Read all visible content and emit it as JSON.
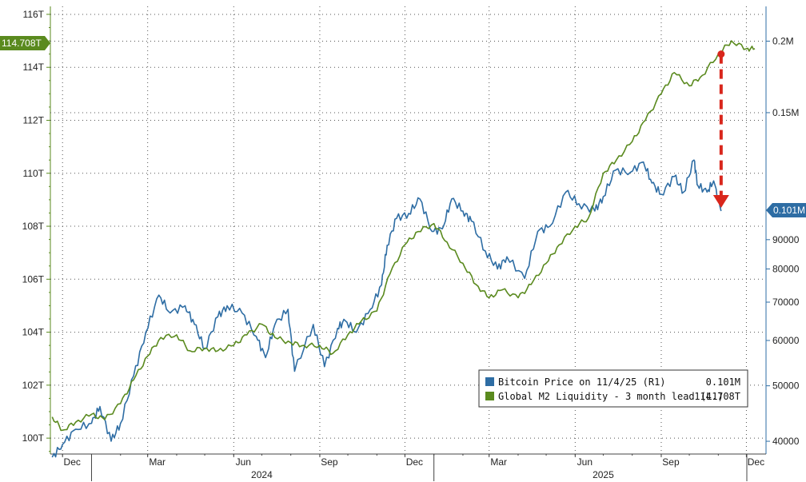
{
  "chart_data": {
    "type": "line",
    "x_axis": {
      "month_ticks": [
        "Dec",
        "Mar",
        "Jun",
        "Sep",
        "Dec",
        "Mar",
        "Jun",
        "Sep",
        "Dec"
      ],
      "year_labels": [
        "2024",
        "2025"
      ]
    },
    "left_axis": {
      "unit": "T",
      "ticks": [
        "100T",
        "102T",
        "104T",
        "106T",
        "108T",
        "110T",
        "112T",
        "114T",
        "116T"
      ],
      "range": [
        99.4,
        116.3
      ]
    },
    "right_axis": {
      "scale": "log",
      "ticks": [
        "40000",
        "50000",
        "60000",
        "70000",
        "80000",
        "90000",
        "0.15M",
        "0.2M"
      ],
      "range": [
        38000,
        230000
      ]
    },
    "grid": true,
    "legend_position": "bottom-right",
    "current_value_tags": {
      "left": "114.708T",
      "right": "0.101M"
    },
    "series": [
      {
        "name": "Bitcoin Price on 11/4/25 (R1)",
        "last_value": "0.101M",
        "axis": "right",
        "color": "#2e6da4",
        "x": [
          "2023-11-20",
          "2023-12-01",
          "2023-12-15",
          "2024-01-01",
          "2024-01-10",
          "2024-01-22",
          "2024-02-01",
          "2024-02-15",
          "2024-02-28",
          "2024-03-13",
          "2024-03-25",
          "2024-04-10",
          "2024-04-20",
          "2024-05-01",
          "2024-05-15",
          "2024-05-25",
          "2024-06-10",
          "2024-06-25",
          "2024-07-05",
          "2024-07-15",
          "2024-07-29",
          "2024-08-05",
          "2024-08-25",
          "2024-09-06",
          "2024-09-20",
          "2024-09-28",
          "2024-10-10",
          "2024-10-25",
          "2024-11-06",
          "2024-11-12",
          "2024-11-22",
          "2024-12-05",
          "2024-12-17",
          "2024-12-30",
          "2025-01-10",
          "2025-01-20",
          "2025-02-01",
          "2025-02-10",
          "2025-02-25",
          "2025-03-10",
          "2025-03-20",
          "2025-04-08",
          "2025-04-22",
          "2025-05-05",
          "2025-05-22",
          "2025-06-05",
          "2025-06-22",
          "2025-07-01",
          "2025-07-14",
          "2025-07-30",
          "2025-08-13",
          "2025-08-22",
          "2025-09-01",
          "2025-09-15",
          "2025-09-25",
          "2025-10-06",
          "2025-10-10",
          "2025-10-20",
          "2025-10-27",
          "2025-11-04"
        ],
        "values": [
          37500,
          39500,
          42000,
          43000,
          46000,
          40000,
          43000,
          52000,
          62000,
          72000,
          67000,
          69000,
          64000,
          58000,
          66000,
          69000,
          67000,
          61000,
          56000,
          64000,
          68000,
          53000,
          64000,
          54000,
          63000,
          65000,
          62000,
          68000,
          75000,
          88000,
          98000,
          100000,
          106000,
          93000,
          94000,
          106000,
          101000,
          97000,
          86000,
          80000,
          84000,
          77000,
          93000,
          95000,
          109000,
          104000,
          101000,
          107000,
          119000,
          118000,
          123000,
          113000,
          108000,
          116000,
          109000,
          124000,
          112000,
          109000,
          114000,
          101000
        ]
      },
      {
        "name": "Global M2 Liquidity - 3 month lead (L1)",
        "last_value": "114.708T",
        "axis": "left",
        "color": "#5a8a1e",
        "x": [
          "2023-11-20",
          "2023-12-01",
          "2023-12-15",
          "2024-01-01",
          "2024-01-15",
          "2024-02-01",
          "2024-02-15",
          "2024-03-01",
          "2024-03-15",
          "2024-04-01",
          "2024-04-15",
          "2024-05-01",
          "2024-05-15",
          "2024-06-01",
          "2024-06-15",
          "2024-07-01",
          "2024-07-15",
          "2024-08-01",
          "2024-08-15",
          "2024-09-01",
          "2024-09-15",
          "2024-10-01",
          "2024-10-15",
          "2024-11-01",
          "2024-11-15",
          "2024-12-01",
          "2024-12-15",
          "2025-01-01",
          "2025-01-15",
          "2025-02-01",
          "2025-02-15",
          "2025-03-01",
          "2025-03-15",
          "2025-04-01",
          "2025-04-15",
          "2025-05-01",
          "2025-05-15",
          "2025-06-01",
          "2025-06-15",
          "2025-07-01",
          "2025-07-15",
          "2025-08-01",
          "2025-08-15",
          "2025-09-01",
          "2025-09-15",
          "2025-10-01",
          "2025-10-15",
          "2025-11-01",
          "2025-11-15",
          "2025-12-01",
          "2025-12-10"
        ],
        "values": [
          100.8,
          100.3,
          100.6,
          100.9,
          100.7,
          101.3,
          102.2,
          103.1,
          103.8,
          103.9,
          103.3,
          103.4,
          103.3,
          103.5,
          103.9,
          104.3,
          103.8,
          103.6,
          103.5,
          103.5,
          103.2,
          103.9,
          104.4,
          104.8,
          106.2,
          107.3,
          107.8,
          108.1,
          107.4,
          106.6,
          105.8,
          105.3,
          105.6,
          105.3,
          105.8,
          106.6,
          107.3,
          108.0,
          108.3,
          110.0,
          110.5,
          111.2,
          112.0,
          113.0,
          113.8,
          113.3,
          113.7,
          114.5,
          115.0,
          114.7,
          114.708
        ]
      }
    ],
    "annotations": [
      {
        "type": "arrow",
        "color": "#d9261c",
        "direction": "down",
        "from_date": "2025-11-04",
        "from_series": "Global M2 Liquidity - 3 month lead (L1)",
        "to_series": "Bitcoin Price on 11/4/25 (R1)"
      }
    ]
  }
}
